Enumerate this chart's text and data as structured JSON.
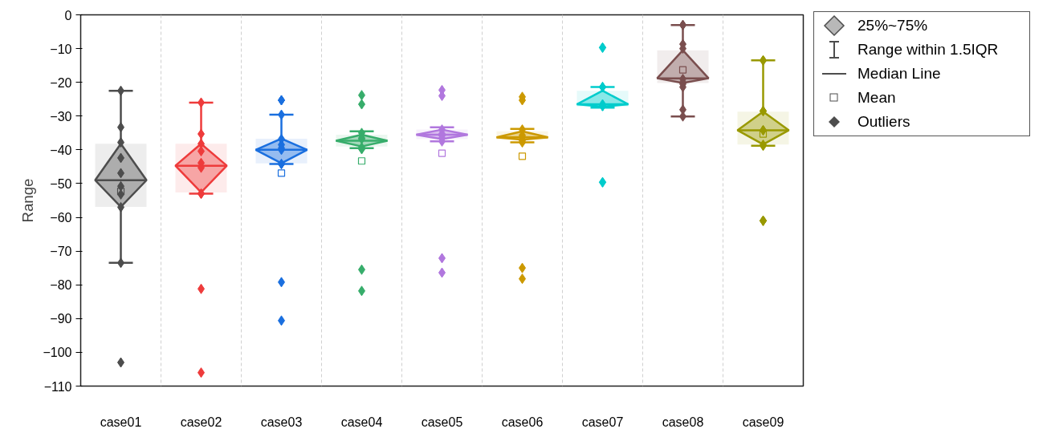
{
  "chart_data": {
    "type": "box",
    "ylabel": "Range",
    "categories": [
      "case01",
      "case02",
      "case03",
      "case04",
      "case05",
      "case06",
      "case07",
      "case08",
      "case09"
    ],
    "colors": [
      "#4d4d4d",
      "#ee3b3b",
      "#1a6fdf",
      "#37ad6b",
      "#b177de",
      "#cc9900",
      "#00cccc",
      "#7a4e4e",
      "#999900"
    ],
    "boxes": [
      {
        "low": -73.5,
        "q1": -56.9,
        "median": -49,
        "q3": -38.2,
        "high": -22.5,
        "mean": -52.3,
        "outliers": [
          -22.5,
          -33.3,
          -37.8,
          -42.4,
          -46.9,
          -50.8,
          -53.2,
          -57,
          -73.5,
          -103
        ]
      },
      {
        "low": -53,
        "q1": -52.6,
        "median": -44.7,
        "q3": -38.2,
        "high": -26,
        "outliers": [
          -26,
          -35.3,
          -38.2,
          -40.4,
          -43.9,
          -45.3,
          -53,
          -53,
          -81.2,
          -106
        ]
      },
      {
        "low": -44.2,
        "q1": -44,
        "median": -40,
        "q3": -36.7,
        "high": -29.6,
        "mean": -46.9,
        "outliers": [
          -25.3,
          -25.3,
          -29.6,
          -36.8,
          -38.5,
          -40,
          -39.5,
          -44.2,
          -44.2,
          -79.2,
          -90.6
        ]
      },
      {
        "low": -39.5,
        "q1": -39,
        "median": -37.3,
        "q3": -35.5,
        "high": -34.5,
        "mean": -43.3,
        "outliers": [
          -23.8,
          -26.5,
          -35,
          -36.5,
          -36.8,
          -39.3,
          -39.8,
          -75.5,
          -81.8
        ]
      },
      {
        "low": -37.5,
        "q1": -36.8,
        "median": -35.5,
        "q3": -34,
        "high": -33.3,
        "mean": -41,
        "outliers": [
          -22.3,
          -24,
          -34,
          -35.2,
          -35.8,
          -36.5,
          -37.5,
          -72.1,
          -76.4
        ]
      },
      {
        "low": -37.8,
        "q1": -37,
        "median": -36.3,
        "q3": -34.5,
        "high": -33.8,
        "mean": -41.9,
        "outliers": [
          -24.3,
          -25.3,
          -34,
          -35.7,
          -36.2,
          -37.2,
          -37.8,
          -75,
          -78.2
        ]
      },
      {
        "low": -27.5,
        "q1": -27.2,
        "median": -26.5,
        "q3": -22.5,
        "high": -21.4,
        "outliers": [
          -9.7,
          -9.7,
          -21.4,
          -21.4,
          -26.5,
          -27,
          -27,
          -27,
          -49.6,
          -49.6
        ]
      },
      {
        "low": -30.1,
        "q1": -20.2,
        "median": -18.8,
        "q3": -10.5,
        "high": -3,
        "mean": -16.3,
        "outliers": [
          -3,
          -3,
          -8.7,
          -10,
          -19,
          -20,
          -20.5,
          -21.4,
          -28.1,
          -30.1
        ]
      },
      {
        "low": -38.8,
        "q1": -38.4,
        "median": -34.2,
        "q3": -28.7,
        "high": -13.5,
        "mean": -35.3,
        "outliers": [
          -13.5,
          -13.5,
          -28.5,
          -28.5,
          -34.2,
          -34.2,
          -38.5,
          -38.8,
          -61,
          -61,
          -61
        ]
      }
    ],
    "ylim": [
      -110,
      0
    ],
    "yticks": [
      0,
      -10,
      -20,
      -30,
      -40,
      -50,
      -60,
      -70,
      -80,
      -90,
      -100,
      -110
    ],
    "grid": "x",
    "annotations": [
      "25%~75%",
      "Range within 1.5IQR",
      "Median Line",
      "Mean",
      "Outliers"
    ]
  }
}
